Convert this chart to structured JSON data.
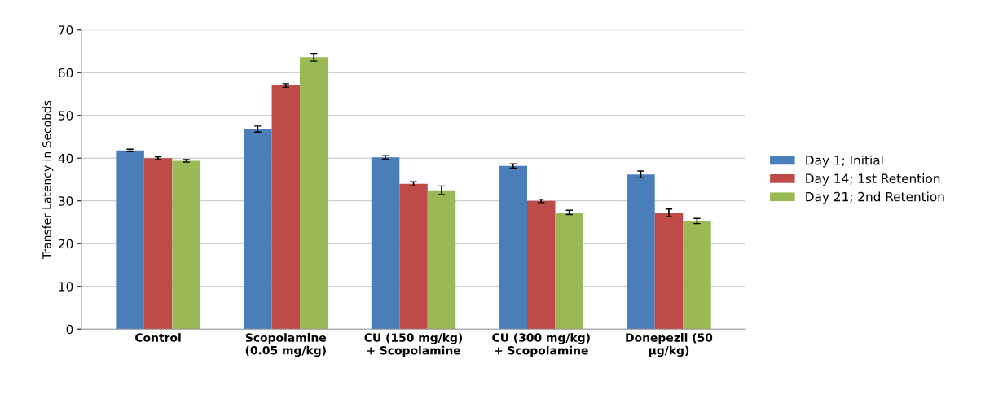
{
  "chart_data": {
    "type": "bar",
    "ylabel": "Transfer Latency in Secobds",
    "categories": [
      "Control",
      "Scopolamine\n(0.05 mg/kg)",
      "CU (150 mg/kg)\n+ Scopolamine",
      "CU (300 mg/kg)\n+ Scopolamine",
      "Donepezil (50\nµg/kg)"
    ],
    "series": [
      {
        "name": "Day 1; Initial",
        "color": "#4a7ebb",
        "values": [
          41.8,
          46.8,
          40.2,
          38.2,
          36.2
        ],
        "errors": [
          0.3,
          0.7,
          0.4,
          0.5,
          0.8
        ]
      },
      {
        "name": "Day 14; 1st Retention",
        "color": "#be4b48",
        "values": [
          40.0,
          57.0,
          34.0,
          30.0,
          27.2
        ],
        "errors": [
          0.3,
          0.4,
          0.5,
          0.4,
          0.9
        ]
      },
      {
        "name": "Day 21; 2nd Retention",
        "color": "#98b954",
        "values": [
          39.4,
          63.6,
          32.5,
          27.3,
          25.3
        ],
        "errors": [
          0.3,
          0.9,
          1.0,
          0.5,
          0.6
        ]
      }
    ],
    "ylim": [
      0,
      70
    ],
    "yticks": [
      0,
      10,
      20,
      30,
      40,
      50,
      60,
      70
    ],
    "grid": "y",
    "legend": "right"
  }
}
